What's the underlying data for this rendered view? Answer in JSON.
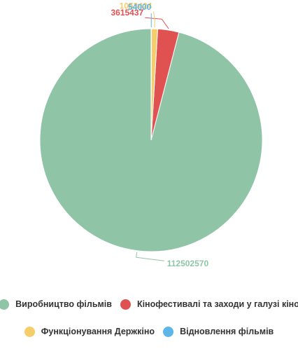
{
  "chart_data": {
    "type": "pie",
    "title": "",
    "legend_position": "bottom",
    "slices": [
      {
        "name": "Виробництво фільмів",
        "value": 112502570,
        "label": "112502570",
        "color": "#8fc5a6"
      },
      {
        "name": "Кінофестивалі та заходи у галузі кіно",
        "value": 3615437,
        "label": "3615437",
        "color": "#e05252"
      },
      {
        "name": "Функціонування Держкіно",
        "value": 1053424,
        "label": "1053424",
        "color": "#f5cd6a"
      },
      {
        "name": "Відновлення фільмів",
        "value": 54000,
        "label": "54000",
        "color": "#5db6e8"
      }
    ]
  }
}
